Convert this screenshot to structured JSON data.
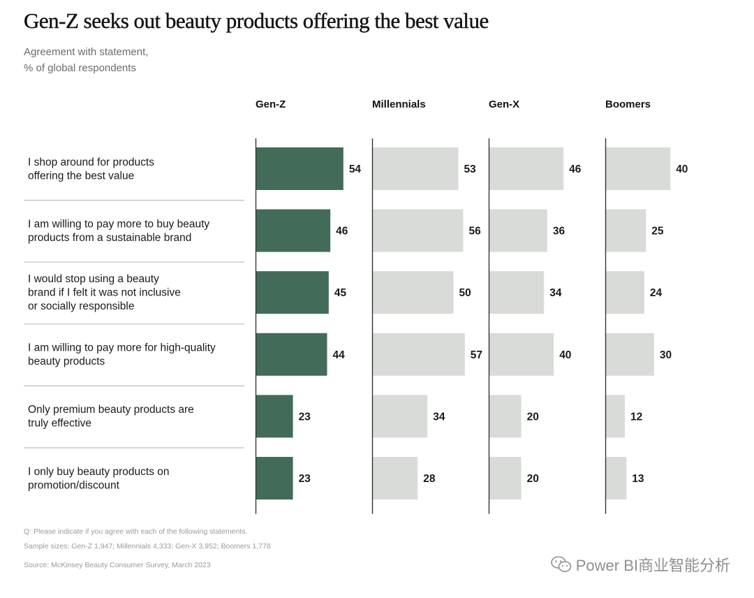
{
  "title": "Gen-Z seeks out beauty products offering the best value",
  "subtitle_lines": [
    "Agreement with statement,",
    "% of global respondents"
  ],
  "colors": {
    "highlight": "#426c58",
    "neutral": "#d9dbd8",
    "separator": "#bdbdbd",
    "axis": "#333333"
  },
  "chart_data": {
    "type": "bar",
    "orientation": "horizontal",
    "layout": "small-multiples",
    "categories": [
      [
        "I shop around for products",
        "offering the best value"
      ],
      [
        "I am willing to pay more to buy beauty",
        "products from a sustainable brand"
      ],
      [
        "I would stop using a beauty",
        "brand if I felt it was not inclusive",
        "or socially responsible"
      ],
      [
        "I am willing to pay more for high-quality",
        "beauty products"
      ],
      [
        "Only premium beauty products are",
        "truly effective"
      ],
      [
        "I only buy beauty products on",
        "promotion/discount"
      ]
    ],
    "series": [
      {
        "name": "Gen-Z",
        "values": [
          54,
          46,
          45,
          44,
          23,
          23
        ],
        "highlight": true
      },
      {
        "name": "Millennials",
        "values": [
          53,
          56,
          50,
          57,
          34,
          28
        ],
        "highlight": false
      },
      {
        "name": "Gen-X",
        "values": [
          46,
          36,
          34,
          40,
          20,
          20
        ],
        "highlight": false
      },
      {
        "name": "Boomers",
        "values": [
          40,
          25,
          24,
          30,
          12,
          13
        ],
        "highlight": false
      }
    ],
    "xlim": [
      0,
      100
    ],
    "grid": false,
    "data_labels": true
  },
  "notes": {
    "question": "Q: Please indicate if you agree with each of the following statements.",
    "samples": "Sample sizes: Gen-Z 1,947; Millennials 4,333; Gen-X 3,952; Boomers 1,778",
    "source": "Source: McKinsey Beauty Consumer Survey, March 2023"
  },
  "watermark": {
    "text": "Power BI商业智能分析",
    "icon": "wechat-icon"
  }
}
